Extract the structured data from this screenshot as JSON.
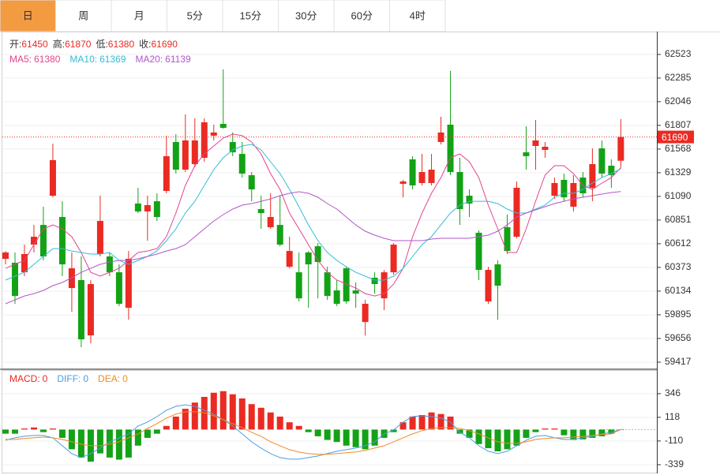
{
  "tabs": [
    "日",
    "周",
    "月",
    "5分",
    "15分",
    "30分",
    "60分",
    "4时"
  ],
  "active_tab": 0,
  "chart_data": [
    {
      "type": "candlestick",
      "up_color": "#eb2a22",
      "down_color": "#13a216",
      "info_labels": [
        "开:",
        "高:",
        "低:",
        "收:"
      ],
      "open": [
        60460,
        60420,
        60324,
        60603,
        60802,
        61097,
        60882,
        60165,
        60245,
        59687,
        60508,
        60484,
        60324,
        59966,
        61018,
        60938,
        61041,
        61145,
        61639,
        61360,
        61416,
        61480,
        61703,
        61822,
        61639,
        61519,
        61304,
        60962,
        60779,
        60802,
        60380,
        60324,
        60524,
        60587,
        60324,
        60141,
        60364,
        60141,
        59822,
        60269,
        60061,
        60324,
        61217,
        61464,
        61225,
        61225,
        61639,
        61814,
        61336,
        61097,
        60723,
        60030,
        60404,
        60779,
        60683,
        61535,
        61599,
        61559,
        61097,
        61257,
        60986,
        61280,
        61177,
        61575,
        61400,
        61450
      ],
      "high": [
        60539,
        60524,
        60603,
        60802,
        60986,
        61623,
        61041,
        60524,
        60484,
        60245,
        61097,
        60524,
        60404,
        60539,
        61177,
        61097,
        61121,
        61703,
        61719,
        61918,
        61878,
        61878,
        61814,
        62372,
        61735,
        61639,
        61336,
        61097,
        61121,
        61097,
        60683,
        60524,
        60539,
        60619,
        60380,
        60245,
        60380,
        60221,
        60046,
        60324,
        60348,
        60619,
        61257,
        61496,
        61519,
        61519,
        61894,
        62356,
        61480,
        61161,
        60747,
        60380,
        60444,
        60906,
        61241,
        61798,
        61862,
        61639,
        61280,
        61320,
        61304,
        61336,
        61575,
        61655,
        61464,
        61870
      ],
      "low": [
        60404,
        60006,
        60285,
        60524,
        60444,
        61081,
        60285,
        59926,
        59568,
        59607,
        60484,
        60285,
        59982,
        59846,
        60922,
        60643,
        60842,
        61121,
        61320,
        61336,
        61384,
        61440,
        61655,
        61774,
        61496,
        61280,
        61041,
        60763,
        60763,
        60587,
        60364,
        60030,
        59966,
        60061,
        60046,
        59982,
        60006,
        59966,
        59687,
        60109,
        59942,
        60300,
        61081,
        61161,
        61201,
        61201,
        61615,
        61304,
        60802,
        60882,
        60245,
        60006,
        59846,
        60508,
        60667,
        61360,
        61360,
        61480,
        61065,
        61041,
        60938,
        61081,
        61041,
        61280,
        61177,
        61380
      ],
      "close": [
        60524,
        60085,
        60508,
        60683,
        60484,
        61456,
        60404,
        60364,
        59647,
        60205,
        60842,
        60324,
        60006,
        60460,
        60938,
        61002,
        60882,
        61496,
        61360,
        61655,
        61655,
        61838,
        61735,
        61782,
        61535,
        61320,
        61161,
        60922,
        60882,
        60603,
        60539,
        60061,
        60404,
        60428,
        60085,
        60006,
        60030,
        60109,
        60006,
        60205,
        60324,
        60603,
        61241,
        61201,
        61336,
        61360,
        61735,
        61336,
        60962,
        61018,
        60348,
        60348,
        60189,
        60539,
        61177,
        61496,
        61655,
        61591,
        61225,
        61081,
        61225,
        61121,
        61416,
        61320,
        61304,
        61690
      ],
      "series": [
        {
          "name": "MA5:",
          "color": "#e2448e",
          "values": [
            60364,
            60404,
            60444,
            60603,
            60763,
            60802,
            60763,
            60683,
            60524,
            60324,
            60285,
            60324,
            60364,
            60444,
            60524,
            60539,
            60563,
            60683,
            60922,
            61201,
            61400,
            61519,
            61599,
            61679,
            61719,
            61703,
            61639,
            61519,
            61320,
            61161,
            60922,
            60763,
            60603,
            60444,
            60324,
            60245,
            60205,
            60165,
            60109,
            60085,
            60109,
            60205,
            60364,
            60683,
            60922,
            61121,
            61280,
            61480,
            61519,
            61440,
            61280,
            61002,
            60763,
            60524,
            60524,
            60763,
            61041,
            61304,
            61400,
            61400,
            61320,
            61201,
            61161,
            61225,
            61280,
            61380
          ]
        },
        {
          "name": "MA10:",
          "color": "#33bcd6",
          "values": [
            60245,
            60285,
            60324,
            60404,
            60484,
            60563,
            60563,
            60539,
            60524,
            60508,
            60508,
            60524,
            60444,
            60404,
            60444,
            60484,
            60539,
            60643,
            60763,
            60922,
            61041,
            61201,
            61360,
            61480,
            61559,
            61599,
            61615,
            61559,
            61440,
            61320,
            61161,
            60986,
            60802,
            60643,
            60524,
            60444,
            60380,
            60324,
            60285,
            60245,
            60245,
            60285,
            60364,
            60484,
            60603,
            60683,
            60802,
            60922,
            61002,
            61041,
            61041,
            61041,
            61018,
            60962,
            60922,
            60922,
            60962,
            61002,
            61081,
            61121,
            61121,
            61161,
            61225,
            61280,
            61320,
            61369
          ]
        },
        {
          "name": "MA20:",
          "color": "#b356c9",
          "values": [
            60006,
            60046,
            60085,
            60109,
            60141,
            60189,
            60221,
            60269,
            60324,
            60364,
            60404,
            60428,
            60444,
            60444,
            60460,
            60484,
            60508,
            60539,
            60563,
            60603,
            60683,
            60763,
            60842,
            60906,
            60962,
            61002,
            61018,
            61041,
            61065,
            61097,
            61121,
            61137,
            61121,
            61081,
            61018,
            60962,
            60882,
            60802,
            60739,
            60699,
            60667,
            60643,
            60643,
            60643,
            60643,
            60659,
            60667,
            60667,
            60667,
            60667,
            60683,
            60699,
            60739,
            60802,
            60882,
            60922,
            60954,
            60986,
            61018,
            61041,
            61065,
            61081,
            61097,
            61113,
            61129,
            61139
          ]
        }
      ],
      "ylim": [
        59353,
        62738
      ],
      "yticks": [
        62523,
        62285,
        62046,
        61807,
        61568,
        61329,
        61090,
        60851,
        60612,
        60373,
        60134,
        59895,
        59656,
        59417
      ],
      "last_price_color": "#eb2a22",
      "grid": true
    },
    {
      "type": "macd",
      "up_color": "#eb2a22",
      "down_color": "#13a216",
      "series": [
        {
          "name": "MACD:",
          "color": "#eb2a22",
          "values": [
            -40,
            -40,
            10,
            20,
            -25,
            10,
            -80,
            -190,
            -270,
            -310,
            -230,
            -270,
            -290,
            -270,
            -155,
            -80,
            -40,
            35,
            125,
            200,
            260,
            315,
            355,
            370,
            340,
            300,
            245,
            210,
            165,
            125,
            70,
            35,
            -25,
            -65,
            -100,
            -120,
            -155,
            -170,
            -190,
            -155,
            -80,
            -25,
            70,
            125,
            140,
            165,
            150,
            125,
            -40,
            -80,
            -140,
            -180,
            -210,
            -190,
            -155,
            -80,
            -25,
            10,
            10,
            -55,
            -100,
            -95,
            -80,
            -65,
            -40,
            0
          ]
        },
        {
          "name": "DIFF:",
          "color": "#4a9fe2",
          "values": [
            -103,
            -80,
            -65,
            -57,
            -57,
            -80,
            -156,
            -232,
            -270,
            -232,
            -179,
            -118,
            -80,
            -42,
            34,
            72,
            125,
            186,
            224,
            239,
            224,
            186,
            148,
            95,
            34,
            -42,
            -118,
            -179,
            -232,
            -270,
            -285,
            -285,
            -270,
            -255,
            -232,
            -209,
            -194,
            -179,
            -156,
            -118,
            -42,
            -4,
            72,
            125,
            133,
            125,
            110,
            72,
            -27,
            -80,
            -156,
            -209,
            -232,
            -209,
            -156,
            -103,
            -65,
            -57,
            -80,
            -95,
            -95,
            -80,
            -65,
            -42,
            -27,
            0
          ]
        },
        {
          "name": "DEA:",
          "color": "#f08a24",
          "values": [
            -95,
            -95,
            -87,
            -80,
            -72,
            -80,
            -95,
            -118,
            -141,
            -156,
            -156,
            -141,
            -118,
            -80,
            -42,
            11,
            57,
            110,
            148,
            171,
            171,
            163,
            133,
            95,
            57,
            19,
            -27,
            -65,
            -118,
            -156,
            -194,
            -217,
            -232,
            -239,
            -239,
            -232,
            -224,
            -217,
            -201,
            -179,
            -156,
            -118,
            -80,
            -42,
            -11,
            11,
            19,
            19,
            11,
            -11,
            -42,
            -80,
            -118,
            -133,
            -133,
            -118,
            -95,
            -87,
            -80,
            -80,
            -72,
            -65,
            -57,
            -49,
            -42,
            0
          ]
        }
      ],
      "ylim": [
        -423,
        566
      ],
      "yticks": [
        346,
        118,
        -110,
        -339
      ],
      "grid": true
    }
  ]
}
